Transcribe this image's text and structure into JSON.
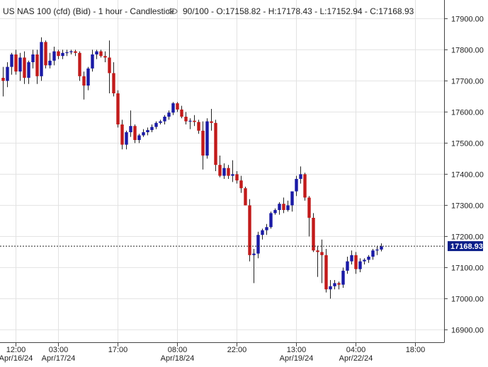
{
  "header": {
    "instrument": "US NAS 100 (cfd) (Bid)",
    "timeframe": "1 hour",
    "chart_type": "Candlestick",
    "visible_count": "90/100",
    "ohlc": {
      "open": "O:17158.82",
      "high": "H:17178.43",
      "low": "L:17152.94",
      "close": "C:17168.93"
    }
  },
  "colors": {
    "up": "#1a1aa6",
    "down": "#c21a1a",
    "grid": "#e2e2e2",
    "axis": "#444444",
    "text": "#222222",
    "price_tag": "#0b1f8a"
  },
  "chart_data": {
    "type": "candlestick",
    "ylim": [
      16860,
      17960
    ],
    "y_ticks": [
      17900,
      17800,
      17700,
      17600,
      17500,
      17400,
      17300,
      17200,
      17100,
      17000,
      16900
    ],
    "y_tick_labels": [
      "17900.00",
      "17800.00",
      "17700.00",
      "17600.00",
      "17500.00",
      "17400.00",
      "17300.00",
      "17200.00",
      "17100.00",
      "17000.00",
      "16900.00"
    ],
    "x_ticks": [
      {
        "index": 3,
        "time": "12:00",
        "date": "Apr/16/24"
      },
      {
        "index": 13,
        "time": "03:00",
        "date": "Apr/17/24"
      },
      {
        "index": 27,
        "time": "17:00",
        "date": ""
      },
      {
        "index": 41,
        "time": "08:00",
        "date": "Apr/18/24"
      },
      {
        "index": 55,
        "time": "22:00",
        "date": ""
      },
      {
        "index": 69,
        "time": "13:00",
        "date": "Apr/19/24"
      },
      {
        "index": 83,
        "time": "04:00",
        "date": "Apr/22/24"
      },
      {
        "index": 97,
        "time": "18:00",
        "date": ""
      }
    ],
    "last_price": 17168.93,
    "last_price_label": "17168.93",
    "candles": [
      [
        17710,
        17745,
        17650,
        17700
      ],
      [
        17700,
        17760,
        17680,
        17745
      ],
      [
        17745,
        17790,
        17720,
        17785
      ],
      [
        17785,
        17800,
        17720,
        17730
      ],
      [
        17730,
        17790,
        17700,
        17775
      ],
      [
        17775,
        17795,
        17690,
        17710
      ],
      [
        17710,
        17765,
        17690,
        17760
      ],
      [
        17760,
        17800,
        17740,
        17785
      ],
      [
        17785,
        17800,
        17690,
        17715
      ],
      [
        17715,
        17840,
        17700,
        17825
      ],
      [
        17825,
        17830,
        17740,
        17750
      ],
      [
        17750,
        17790,
        17740,
        17765
      ],
      [
        17765,
        17810,
        17750,
        17795
      ],
      [
        17795,
        17800,
        17770,
        17780
      ],
      [
        17780,
        17800,
        17770,
        17790
      ],
      [
        17790,
        17800,
        17780,
        17792
      ],
      [
        17792,
        17800,
        17785,
        17795
      ],
      [
        17795,
        17800,
        17780,
        17790
      ],
      [
        17790,
        17795,
        17700,
        17715
      ],
      [
        17715,
        17730,
        17640,
        17685
      ],
      [
        17685,
        17745,
        17670,
        17740
      ],
      [
        17740,
        17800,
        17730,
        17785
      ],
      [
        17785,
        17800,
        17770,
        17795
      ],
      [
        17795,
        17800,
        17775,
        17780
      ],
      [
        17780,
        17795,
        17760,
        17775
      ],
      [
        17775,
        17830,
        17660,
        17725
      ],
      [
        17725,
        17760,
        17650,
        17660
      ],
      [
        17660,
        17670,
        17550,
        17560
      ],
      [
        17560,
        17575,
        17480,
        17495
      ],
      [
        17495,
        17540,
        17480,
        17535
      ],
      [
        17535,
        17605,
        17520,
        17555
      ],
      [
        17555,
        17560,
        17500,
        17510
      ],
      [
        17510,
        17530,
        17500,
        17525
      ],
      [
        17525,
        17545,
        17520,
        17535
      ],
      [
        17535,
        17550,
        17525,
        17542
      ],
      [
        17542,
        17560,
        17535,
        17552
      ],
      [
        17552,
        17570,
        17545,
        17565
      ],
      [
        17565,
        17575,
        17560,
        17570
      ],
      [
        17570,
        17590,
        17560,
        17585
      ],
      [
        17585,
        17605,
        17575,
        17598
      ],
      [
        17598,
        17632,
        17590,
        17628
      ],
      [
        17628,
        17632,
        17600,
        17608
      ],
      [
        17608,
        17620,
        17580,
        17585
      ],
      [
        17585,
        17600,
        17560,
        17570
      ],
      [
        17570,
        17580,
        17545,
        17572
      ],
      [
        17572,
        17590,
        17555,
        17568
      ],
      [
        17568,
        17575,
        17530,
        17540
      ],
      [
        17540,
        17570,
        17415,
        17460
      ],
      [
        17460,
        17580,
        17450,
        17570
      ],
      [
        17570,
        17610,
        17540,
        17565
      ],
      [
        17565,
        17575,
        17410,
        17430
      ],
      [
        17430,
        17460,
        17390,
        17395
      ],
      [
        17395,
        17435,
        17385,
        17420
      ],
      [
        17420,
        17430,
        17385,
        17395
      ],
      [
        17395,
        17445,
        17375,
        17400
      ],
      [
        17400,
        17410,
        17370,
        17380
      ],
      [
        17380,
        17395,
        17340,
        17355
      ],
      [
        17355,
        17360,
        17300,
        17300
      ],
      [
        17300,
        17320,
        17120,
        17140
      ],
      [
        17140,
        17160,
        17050,
        17145
      ],
      [
        17145,
        17215,
        17130,
        17205
      ],
      [
        17205,
        17225,
        17190,
        17220
      ],
      [
        17220,
        17240,
        17205,
        17230
      ],
      [
        17230,
        17280,
        17225,
        17275
      ],
      [
        17275,
        17290,
        17270,
        17285
      ],
      [
        17285,
        17310,
        17270,
        17305
      ],
      [
        17305,
        17325,
        17275,
        17285
      ],
      [
        17285,
        17315,
        17280,
        17300
      ],
      [
        17300,
        17340,
        17280,
        17345
      ],
      [
        17345,
        17395,
        17330,
        17385
      ],
      [
        17385,
        17425,
        17370,
        17400
      ],
      [
        17400,
        17405,
        17315,
        17325
      ],
      [
        17325,
        17330,
        17200,
        17260
      ],
      [
        17260,
        17275,
        17150,
        17155
      ],
      [
        17155,
        17170,
        17070,
        17150
      ],
      [
        17150,
        17190,
        17050,
        17140
      ],
      [
        17140,
        17160,
        17020,
        17030
      ],
      [
        17030,
        17060,
        17000,
        17040
      ],
      [
        17040,
        17060,
        17030,
        17050
      ],
      [
        17050,
        17055,
        17030,
        17045
      ],
      [
        17045,
        17100,
        17035,
        17090
      ],
      [
        17090,
        17135,
        17080,
        17120
      ],
      [
        17120,
        17155,
        17110,
        17140
      ],
      [
        17140,
        17150,
        17080,
        17095
      ],
      [
        17095,
        17130,
        17085,
        17120
      ],
      [
        17120,
        17130,
        17110,
        17125
      ],
      [
        17125,
        17140,
        17115,
        17135
      ],
      [
        17135,
        17160,
        17125,
        17155
      ],
      [
        17155,
        17170,
        17140,
        17158
      ],
      [
        17158,
        17178,
        17152,
        17168
      ]
    ]
  }
}
